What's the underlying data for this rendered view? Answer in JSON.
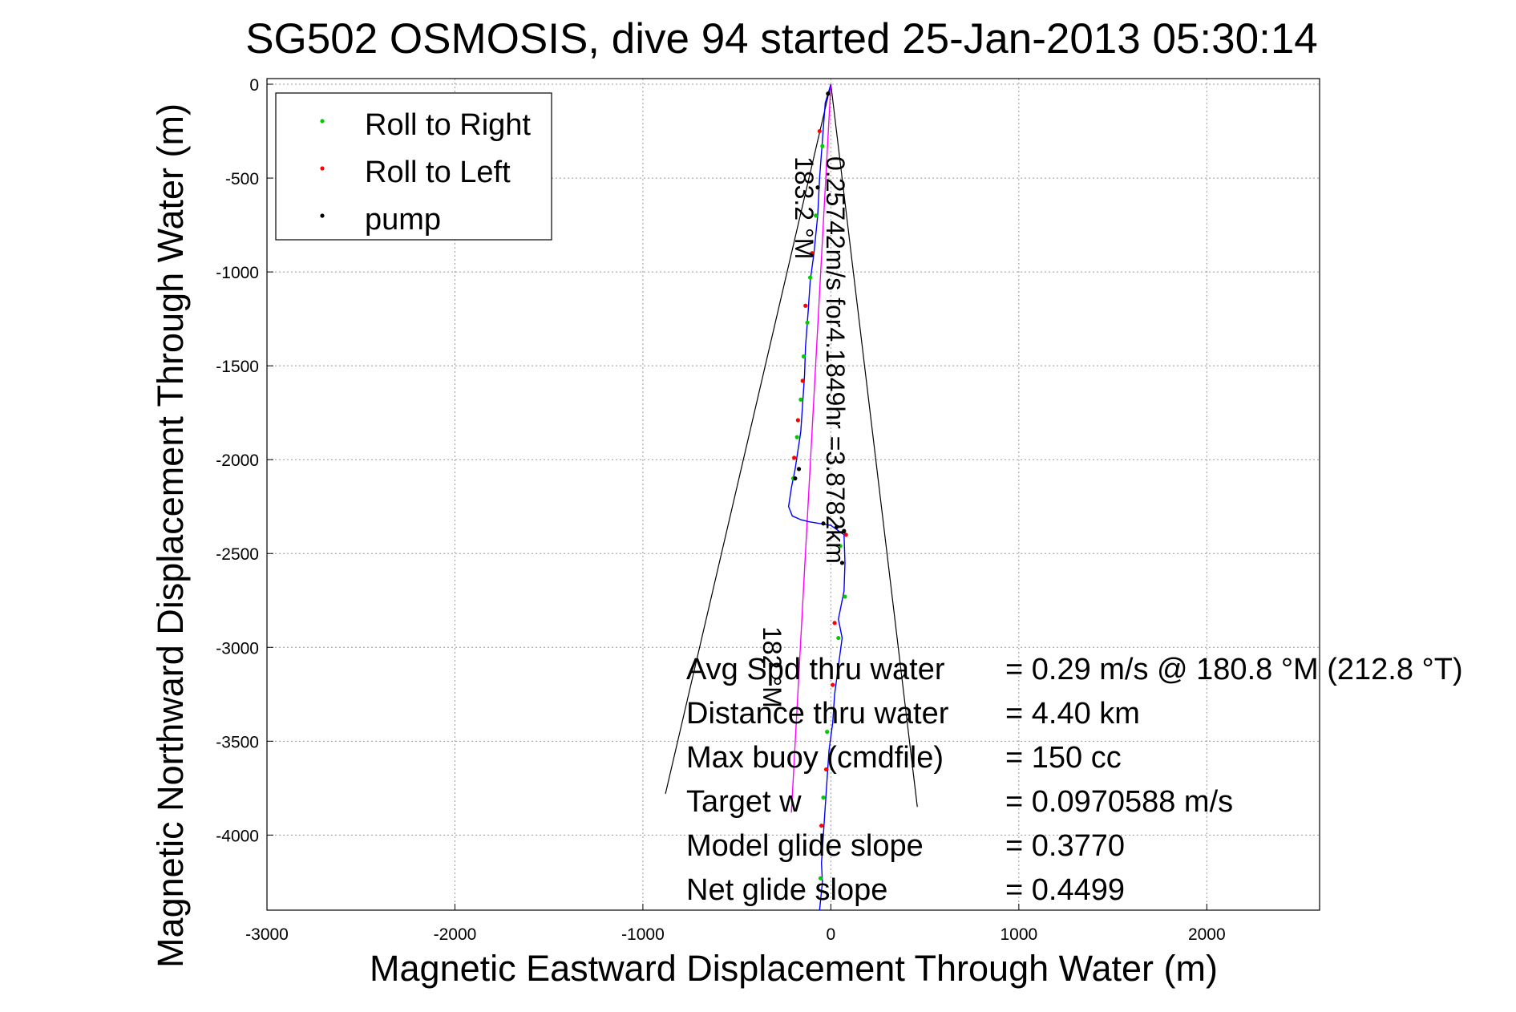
{
  "chart_data": {
    "type": "scatter",
    "title": "SG502 OSMOSIS, dive 94 started 25-Jan-2013 05:30:14",
    "xlabel": "Magnetic Eastward Displacement Through Water (m)",
    "ylabel": "Magnetic Northward Displacement Through Water (m)",
    "xlim": [
      -3000,
      2600
    ],
    "ylim": [
      -4400,
      30
    ],
    "xticks": [
      -3000,
      -2000,
      -1000,
      0,
      1000,
      2000
    ],
    "yticks": [
      0,
      -500,
      -1000,
      -1500,
      -2000,
      -2500,
      -3000,
      -3500,
      -4000
    ],
    "grid": true,
    "legend_position": "top-left",
    "legend": [
      {
        "label": "Roll to Right",
        "color": "#00cc00"
      },
      {
        "label": "Roll to Left",
        "color": "#ff0000"
      },
      {
        "label": "pump",
        "color": "#000000"
      }
    ],
    "track": {
      "color": "#0000ff",
      "x": [
        0,
        -30,
        -45,
        -60,
        -70,
        -90,
        -110,
        -120,
        -135,
        -140,
        -150,
        -160,
        -175,
        -190,
        -210,
        -225,
        -205,
        -160,
        -120,
        -60,
        0,
        70,
        75,
        70,
        40,
        60,
        40,
        20,
        10,
        -10,
        -20,
        -30,
        -40,
        -50,
        -45,
        -55,
        -60
      ],
      "y": [
        0,
        -100,
        -300,
        -500,
        -700,
        -900,
        -1050,
        -1200,
        -1400,
        -1550,
        -1700,
        -1850,
        -1950,
        -2050,
        -2150,
        -2250,
        -2300,
        -2320,
        -2330,
        -2340,
        -2350,
        -2400,
        -2550,
        -2700,
        -2850,
        -2950,
        -3100,
        -3250,
        -3400,
        -3550,
        -3700,
        -3850,
        -4000,
        -4150,
        -4250,
        -4350,
        -4400
      ]
    },
    "roll_right": {
      "x": [
        -45,
        -80,
        -110,
        -125,
        -145,
        -160,
        -180,
        -200,
        50,
        75,
        40,
        -20,
        -40,
        -55
      ],
      "y": [
        -330,
        -700,
        -1030,
        -1270,
        -1450,
        -1680,
        -1880,
        -2100,
        -2460,
        -2730,
        -2950,
        -3450,
        -3800,
        -4230
      ]
    },
    "roll_left": {
      "x": [
        -60,
        -100,
        -135,
        -150,
        -175,
        -195,
        80,
        20,
        10,
        -25,
        -50
      ],
      "y": [
        -250,
        -900,
        -1180,
        -1580,
        -1790,
        -1990,
        -2400,
        -2870,
        -3200,
        -3650,
        -3950
      ]
    },
    "pump": {
      "x": [
        -15,
        -70,
        -170,
        -190,
        -40,
        30,
        70,
        60
      ],
      "y": [
        -50,
        -550,
        -2050,
        -2100,
        -2340,
        -2360,
        -2380,
        -2550
      ]
    },
    "heading_line": {
      "color": "#ff00ff",
      "x": [
        0,
        -210
      ],
      "y": [
        0,
        -3880
      ]
    },
    "cone_lines": [
      {
        "x": [
          0,
          -880
        ],
        "y": [
          0,
          -3780
        ]
      },
      {
        "x": [
          0,
          460
        ],
        "y": [
          0,
          -3850
        ]
      }
    ],
    "rotated_labels": [
      {
        "text": "0.25742m/s for4.1849hr =3.8782km",
        "x": 30,
        "y": -380
      },
      {
        "text": "183.2 °M",
        "x": -110,
        "y": -390
      },
      {
        "text": "182 °M",
        "x": -280,
        "y": -3050
      }
    ],
    "annotations": [
      {
        "label": "Avg Spd thru water",
        "value": "=  0.29 m/s @ 180.8  °M (212.8  °T)"
      },
      {
        "label": "Distance thru water",
        "value": "=  4.40 km"
      },
      {
        "label": "Max buoy (cmdfile)",
        "value": "= 150 cc"
      },
      {
        "label": "Target w",
        "value": "= 0.0970588 m/s"
      },
      {
        "label": "Model glide slope",
        "value": "= 0.3770"
      },
      {
        "label": "Net glide slope",
        "value": "= 0.4499"
      }
    ]
  }
}
